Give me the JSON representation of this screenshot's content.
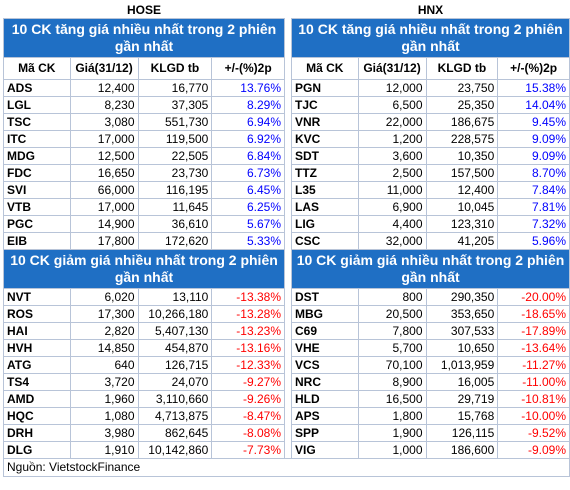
{
  "header": {
    "exchanges": [
      "HOSE",
      "HNX"
    ]
  },
  "table": {
    "columns": [
      "Mã CK",
      "Giá(31/12)",
      "KLGD tb",
      "+/-(%)2p"
    ],
    "gainers": {
      "title": "10 CK tăng giá nhiều nhất trong 2 phiên gần nhất",
      "hose": [
        [
          "ADS",
          "12,400",
          "16,770",
          "13.76%"
        ],
        [
          "LGL",
          "8,230",
          "37,305",
          "8.29%"
        ],
        [
          "TSC",
          "3,080",
          "551,730",
          "6.94%"
        ],
        [
          "ITC",
          "17,000",
          "119,500",
          "6.92%"
        ],
        [
          "MDG",
          "12,500",
          "22,505",
          "6.84%"
        ],
        [
          "FDC",
          "16,650",
          "23,730",
          "6.73%"
        ],
        [
          "SVI",
          "66,000",
          "116,195",
          "6.45%"
        ],
        [
          "VTB",
          "17,000",
          "11,645",
          "6.25%"
        ],
        [
          "PGC",
          "14,900",
          "36,610",
          "5.67%"
        ],
        [
          "EIB",
          "17,800",
          "172,620",
          "5.33%"
        ]
      ],
      "hnx": [
        [
          "PGN",
          "12,000",
          "23,750",
          "15.38%"
        ],
        [
          "TJC",
          "6,500",
          "25,350",
          "14.04%"
        ],
        [
          "VNR",
          "22,000",
          "186,675",
          "9.45%"
        ],
        [
          "KVC",
          "1,200",
          "228,575",
          "9.09%"
        ],
        [
          "SDT",
          "3,600",
          "10,350",
          "9.09%"
        ],
        [
          "TTZ",
          "2,500",
          "157,500",
          "8.70%"
        ],
        [
          "L35",
          "11,000",
          "12,400",
          "7.84%"
        ],
        [
          "LAS",
          "6,900",
          "10,045",
          "7.81%"
        ],
        [
          "LIG",
          "4,400",
          "123,310",
          "7.32%"
        ],
        [
          "CSC",
          "32,000",
          "41,205",
          "5.96%"
        ]
      ]
    },
    "losers": {
      "title": "10 CK giảm giá nhiều nhất trong 2 phiên gần nhất",
      "hose": [
        [
          "NVT",
          "6,020",
          "13,110",
          "-13.38%"
        ],
        [
          "ROS",
          "17,300",
          "10,266,180",
          "-13.28%"
        ],
        [
          "HAI",
          "2,820",
          "5,407,130",
          "-13.23%"
        ],
        [
          "HVH",
          "14,850",
          "454,870",
          "-13.16%"
        ],
        [
          "ATG",
          "640",
          "126,715",
          "-12.33%"
        ],
        [
          "TS4",
          "3,720",
          "24,070",
          "-9.27%"
        ],
        [
          "AMD",
          "1,960",
          "3,110,660",
          "-9.26%"
        ],
        [
          "HQC",
          "1,080",
          "4,713,875",
          "-8.47%"
        ],
        [
          "DRH",
          "3,980",
          "862,645",
          "-8.08%"
        ],
        [
          "DLG",
          "1,910",
          "10,142,860",
          "-7.73%"
        ]
      ],
      "hnx": [
        [
          "DST",
          "800",
          "290,350",
          "-20.00%"
        ],
        [
          "MBG",
          "20,500",
          "353,650",
          "-18.65%"
        ],
        [
          "C69",
          "7,800",
          "307,533",
          "-17.89%"
        ],
        [
          "VHE",
          "5,700",
          "10,650",
          "-13.64%"
        ],
        [
          "VCS",
          "70,100",
          "1,013,959",
          "-11.27%"
        ],
        [
          "NRC",
          "8,900",
          "16,005",
          "-11.00%"
        ],
        [
          "HLD",
          "16,500",
          "29,719",
          "-10.81%"
        ],
        [
          "APS",
          "1,800",
          "15,768",
          "-10.00%"
        ],
        [
          "SPP",
          "1,900",
          "126,115",
          "-9.52%"
        ],
        [
          "VIG",
          "1,000",
          "186,600",
          "-9.09%"
        ]
      ]
    }
  },
  "footer": {
    "source": "Nguồn: VietstockFinance"
  }
}
